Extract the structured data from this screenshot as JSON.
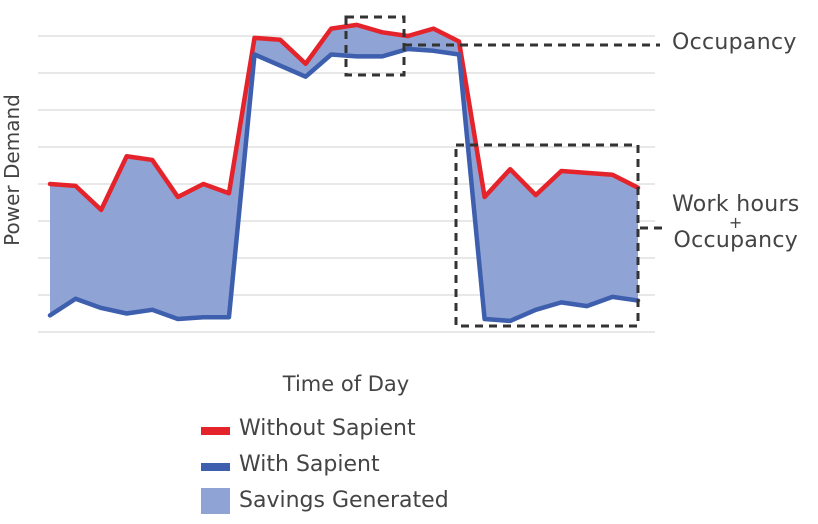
{
  "chart_data": {
    "type": "area",
    "title": "",
    "xlabel": "Time of Day",
    "ylabel": "Power Demand",
    "ylim": [
      0,
      9
    ],
    "grid": true,
    "legend_placement": "bottom",
    "x": [
      0,
      1,
      2,
      3,
      4,
      5,
      6,
      7,
      8,
      9,
      10,
      11,
      12,
      13,
      14,
      15,
      16,
      17,
      18,
      19,
      20,
      21,
      22,
      23
    ],
    "series": [
      {
        "name": "Without Sapient",
        "color": "#e5232b",
        "values": [
          4.0,
          3.95,
          3.3,
          4.75,
          4.65,
          3.65,
          4.0,
          3.75,
          7.95,
          7.9,
          7.25,
          8.2,
          8.3,
          8.1,
          8.0,
          8.2,
          7.85,
          3.65,
          4.4,
          3.7,
          4.35,
          4.3,
          4.25,
          3.9
        ]
      },
      {
        "name": "With Sapient",
        "color": "#3d5fae",
        "values": [
          0.45,
          0.9,
          0.65,
          0.5,
          0.6,
          0.35,
          0.4,
          0.4,
          7.5,
          7.2,
          6.9,
          7.5,
          7.45,
          7.45,
          7.65,
          7.6,
          7.5,
          0.35,
          0.3,
          0.6,
          0.8,
          0.7,
          0.95,
          0.85
        ]
      }
    ],
    "fill": {
      "name": "Savings Generated",
      "color": "#8fa3d4"
    },
    "annotations": [
      {
        "text": "Occupancy"
      },
      {
        "line1": "Work hours",
        "plus": "+",
        "line2": "Occupancy"
      }
    ]
  },
  "legend": [
    {
      "label": "Without Sapient",
      "kind": "line",
      "color": "#e5232b"
    },
    {
      "label": "With Sapient",
      "kind": "line",
      "color": "#3d5fae"
    },
    {
      "label": "Savings Generated",
      "kind": "area",
      "color": "#8fa3d4"
    }
  ]
}
